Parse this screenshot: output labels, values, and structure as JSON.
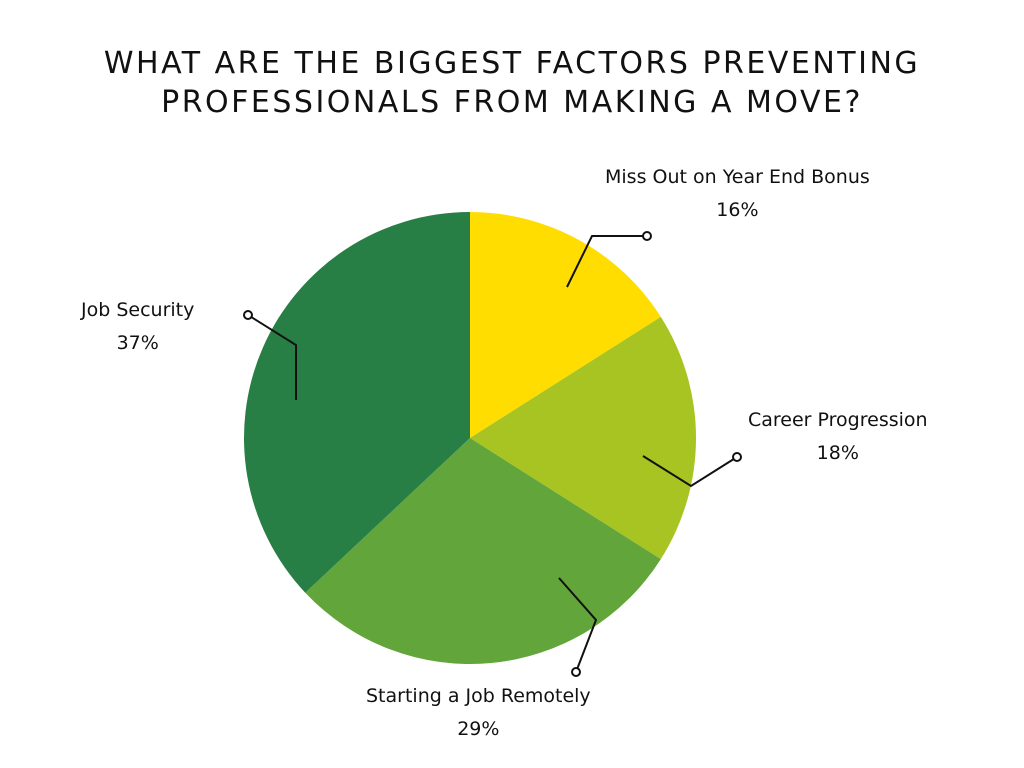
{
  "chart_data": {
    "type": "pie",
    "title_lines": [
      "WHAT ARE THE BIGGEST FACTORS PREVENTING",
      "PROFESSIONALS FROM MAKING A MOVE?"
    ],
    "slices": [
      {
        "label": "Miss Out on Year End Bonus",
        "value": 16,
        "value_label": "16%",
        "color": "#FFDD00"
      },
      {
        "label": "Career Progression",
        "value": 18,
        "value_label": "18%",
        "color": "#A8C423"
      },
      {
        "label": "Starting a Job Remotely",
        "value": 29,
        "value_label": "29%",
        "color": "#62A53A"
      },
      {
        "label": "Job Security",
        "value": 37,
        "value_label": "37%",
        "color": "#287F46"
      }
    ],
    "start": "top",
    "direction": "clockwise",
    "legend": "none"
  }
}
